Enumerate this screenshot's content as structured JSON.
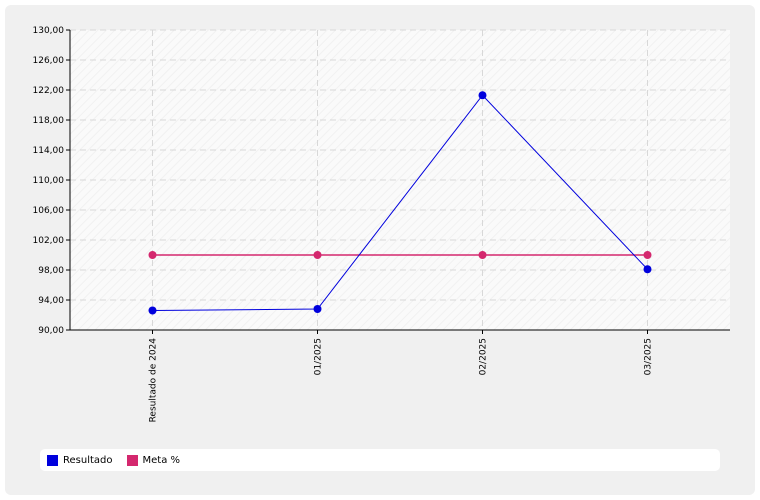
{
  "chart_data": {
    "type": "line",
    "categories": [
      "Resultado de 2024",
      "01/2025",
      "02/2025",
      "03/2025"
    ],
    "series": [
      {
        "name": "Resultado",
        "values": [
          92.6,
          92.8,
          121.3,
          98.1
        ],
        "color": "#0000dd"
      },
      {
        "name": "Meta %",
        "values": [
          100,
          100,
          100,
          100
        ],
        "color": "#d4286e"
      }
    ],
    "ylim": [
      90,
      130
    ],
    "yticks": [
      90,
      94,
      98,
      102,
      106,
      110,
      114,
      118,
      122,
      126,
      130
    ],
    "ytick_labels": [
      "90,00",
      "94,00",
      "98,00",
      "102,00",
      "106,00",
      "110,00",
      "114,00",
      "118,00",
      "122,00",
      "126,00",
      "130,00"
    ],
    "grid": true,
    "legend_position": "bottom"
  },
  "legend": {
    "items": [
      {
        "label": "Resultado",
        "color": "#0000dd"
      },
      {
        "label": "Meta %",
        "color": "#d4286e"
      }
    ]
  }
}
